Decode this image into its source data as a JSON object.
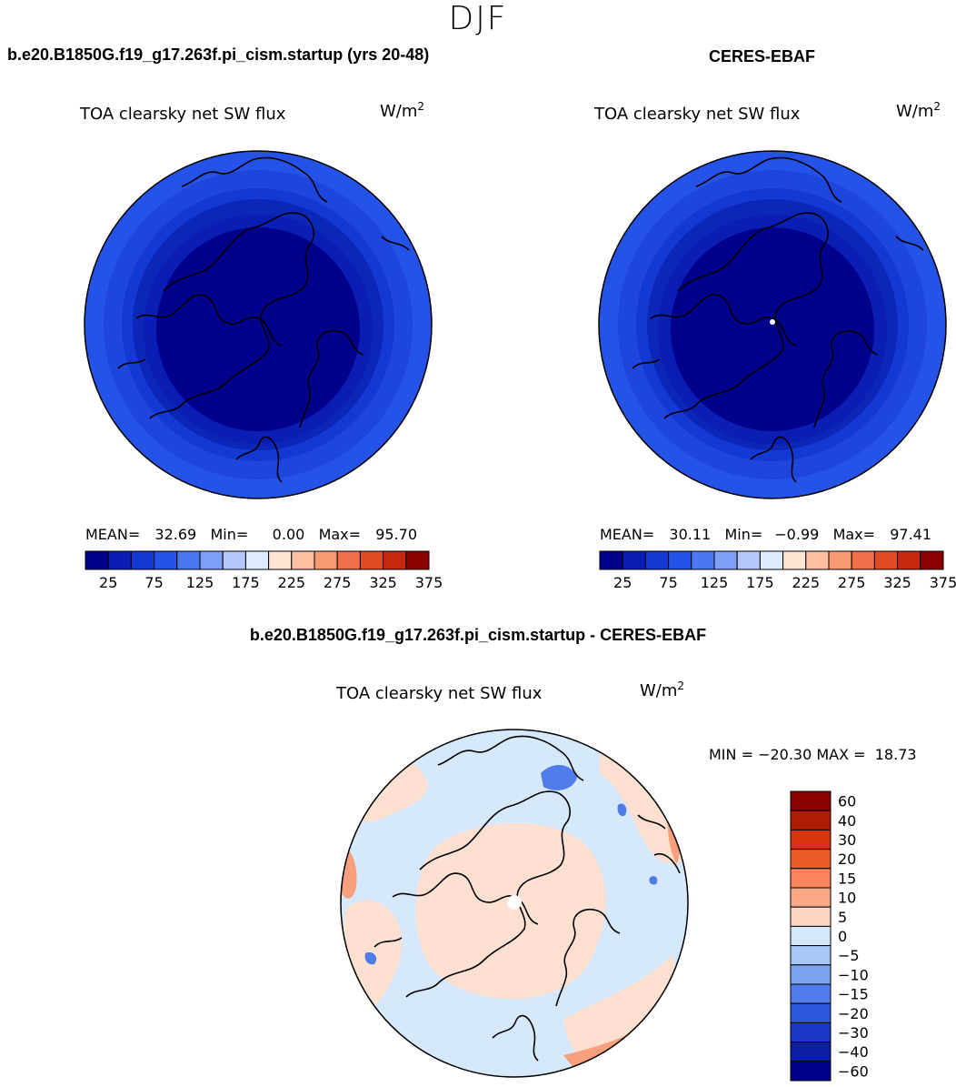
{
  "season": "DJF",
  "panels": {
    "model": {
      "title": "b.e20.B1850G.f19_g17.263f.pi_cism.startup (yrs 20-48)",
      "variable": "TOA clearsky net SW flux",
      "units": "W/m",
      "units_exp": "2",
      "mean_label": "MEAN=",
      "mean": "32.69",
      "min_label": "Min=",
      "min": "0.00",
      "max_label": "Max=",
      "max": "95.70"
    },
    "obs": {
      "title": "CERES-EBAF",
      "variable": "TOA clearsky net SW flux",
      "units": "W/m",
      "units_exp": "2",
      "mean_label": "MEAN=",
      "mean": "30.11",
      "min_label": "Min=",
      "min": "−0.99",
      "max_label": "Max=",
      "max": "97.41"
    },
    "diff": {
      "title": "b.e20.B1850G.f19_g17.263f.pi_cism.startup - CERES-EBAF",
      "variable": "TOA clearsky net SW flux",
      "units": "W/m",
      "units_exp": "2",
      "minmax": "MIN = −20.30 MAX =  18.73"
    }
  },
  "colorbar_main": {
    "colors": [
      "#00008b",
      "#0a1eb4",
      "#1438d2",
      "#2553e8",
      "#4a78f0",
      "#7f9ef5",
      "#b3c8fa",
      "#deeaff",
      "#ffe4d2",
      "#fcc0a3",
      "#f79a73",
      "#f0704a",
      "#e24a24",
      "#c52a0e",
      "#8b0000"
    ],
    "tick_labels": [
      "25",
      "75",
      "125",
      "175",
      "225",
      "275",
      "325",
      "375"
    ]
  },
  "colorbar_diff": {
    "colors": [
      "#8b0000",
      "#b01c06",
      "#d7330d",
      "#ec5c2b",
      "#f8855c",
      "#fca888",
      "#fdd6c1",
      "#d6e8fb",
      "#a8c7f5",
      "#7ba3f0",
      "#4f7ce8",
      "#2c56dc",
      "#1838c4",
      "#0c1ea8",
      "#00008b"
    ],
    "tick_labels": [
      "60",
      "40",
      "30",
      "20",
      "15",
      "10",
      "5",
      "0",
      "−5",
      "−10",
      "−15",
      "−20",
      "−30",
      "−40",
      "−60"
    ]
  },
  "field_colors": {
    "model_rings": [
      "#2553e8",
      "#1e45dc",
      "#1438d2",
      "#0c26b8",
      "#0a1eb4",
      "#00008b"
    ],
    "diff_base": "#fde0cf",
    "diff_neg": "#d6e8fb",
    "diff_pos_strong": "#f8a07e",
    "diff_neg_strong": "#4f7ce8"
  }
}
